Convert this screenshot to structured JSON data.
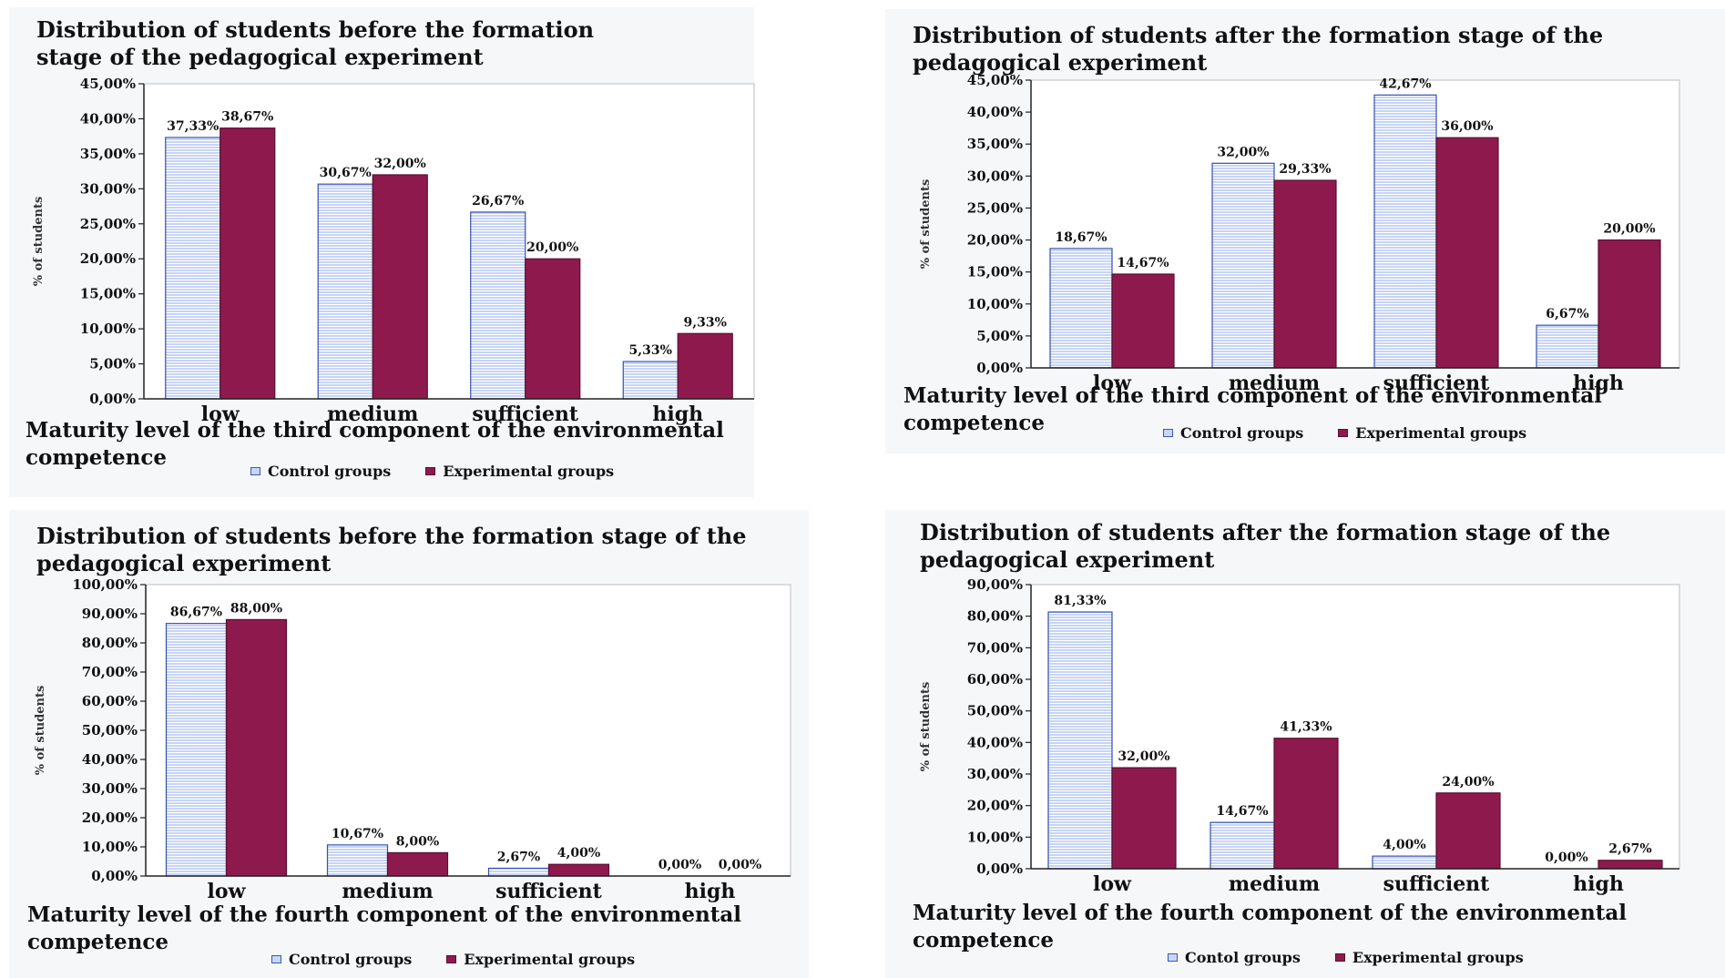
{
  "colors": {
    "control": "#c7d4f3",
    "control_stroke": "#3650b0",
    "control_stripe": "#ffffff",
    "experimental": "#8e1a4d",
    "experimental_stroke": "#5a0f30"
  },
  "charts": [
    {
      "title": "Distribution of students before the formation stage of the pedagogical experiment",
      "xtitle": "Maturity level of the third component of the environmental competence",
      "ylabel": "% of students",
      "legend": [
        "Control groups",
        "Experimental groups"
      ],
      "ticks": [
        "0,00%",
        "5,00%",
        "10,00%",
        "15,00%",
        "20,00%",
        "25,00%",
        "30,00%",
        "35,00%",
        "40,00%",
        "45,00%"
      ]
    },
    {
      "title": "Distribution of students after the formation stage of the pedagogical experiment",
      "xtitle": "Maturity level of the third component of the environmental competence",
      "ylabel": "% of students",
      "legend": [
        "Control groups",
        "Experimental groups"
      ],
      "ticks": [
        "0,00%",
        "5,00%",
        "10,00%",
        "15,00%",
        "20,00%",
        "25,00%",
        "30,00%",
        "35,00%",
        "40,00%",
        "45,00%"
      ]
    },
    {
      "title": "Distribution of students before the formation stage of the pedagogical experiment",
      "xtitle": "Maturity level of the fourth component of the environmental competence",
      "ylabel": "% of students",
      "legend": [
        "Control groups",
        "Experimental groups"
      ],
      "ticks": [
        "0,00%",
        "10,00%",
        "20,00%",
        "30,00%",
        "40,00%",
        "50,00%",
        "60,00%",
        "70,00%",
        "80,00%",
        "90,00%",
        "100,00%"
      ]
    },
    {
      "title": "Distribution of students after the formation stage of the pedagogical experiment",
      "xtitle": "Maturity level of the fourth component of the environmental competence",
      "ylabel": "% of students",
      "legend": [
        "Contol groups",
        "Experimental groups"
      ],
      "ticks": [
        "0,00%",
        "10,00%",
        "20,00%",
        "30,00%",
        "40,00%",
        "50,00%",
        "60,00%",
        "70,00%",
        "80,00%",
        "90,00%"
      ]
    }
  ],
  "chart_data": [
    {
      "type": "bar",
      "title": "Distribution of students before the formation stage of the pedagogical experiment",
      "xlabel": "Maturity level of the third component of the environmental competence",
      "ylabel": "% of students",
      "categories": [
        "low",
        "medium",
        "sufficient",
        "high"
      ],
      "series": [
        {
          "name": "Control groups",
          "values": [
            37.33,
            30.67,
            26.67,
            5.33
          ],
          "labels": [
            "37,33%",
            "30,67%",
            "26,67%",
            "5,33%"
          ]
        },
        {
          "name": "Experimental groups",
          "values": [
            38.67,
            32.0,
            20.0,
            9.33
          ],
          "labels": [
            "38,67%",
            "32,00%",
            "20,00%",
            "9,33%"
          ]
        }
      ],
      "ylim": [
        0,
        45
      ],
      "legend": "bottom",
      "grid": false
    },
    {
      "type": "bar",
      "title": "Distribution of students after the formation stage of the pedagogical experiment",
      "xlabel": "Maturity level of the third component of the environmental competence",
      "ylabel": "% of students",
      "categories": [
        "low",
        "medium",
        "sufficient",
        "high"
      ],
      "series": [
        {
          "name": "Control groups",
          "values": [
            18.67,
            32.0,
            42.67,
            6.67
          ],
          "labels": [
            "18,67%",
            "32,00%",
            "42,67%",
            "6,67%"
          ]
        },
        {
          "name": "Experimental groups",
          "values": [
            14.67,
            29.33,
            36.0,
            20.0
          ],
          "labels": [
            "14,67%",
            "29,33%",
            "36,00%",
            "20,00%"
          ]
        }
      ],
      "ylim": [
        0,
        45
      ],
      "legend": "bottom",
      "grid": false
    },
    {
      "type": "bar",
      "title": "Distribution of students before the formation stage of the pedagogical experiment",
      "xlabel": "Maturity level of the fourth component of the environmental competence",
      "ylabel": "% of students",
      "categories": [
        "low",
        "medium",
        "sufficient",
        "high"
      ],
      "series": [
        {
          "name": "Control groups",
          "values": [
            86.67,
            10.67,
            2.67,
            0.0
          ],
          "labels": [
            "86,67%",
            "10,67%",
            "2,67%",
            "0,00%"
          ]
        },
        {
          "name": "Experimental groups",
          "values": [
            88.0,
            8.0,
            4.0,
            0.0
          ],
          "labels": [
            "88,00%",
            "8,00%",
            "4,00%",
            "0,00%"
          ]
        }
      ],
      "ylim": [
        0,
        100
      ],
      "legend": "bottom",
      "grid": false
    },
    {
      "type": "bar",
      "title": "Distribution of students after the formation stage of the pedagogical experiment",
      "xlabel": "Maturity level of the fourth component of the environmental competence",
      "ylabel": "% of students",
      "categories": [
        "low",
        "medium",
        "sufficient",
        "high"
      ],
      "series": [
        {
          "name": "Contol groups",
          "values": [
            81.33,
            14.67,
            4.0,
            0.0
          ],
          "labels": [
            "81,33%",
            "14,67%",
            "4,00%",
            "0,00%"
          ]
        },
        {
          "name": "Experimental groups",
          "values": [
            32.0,
            41.33,
            24.0,
            2.67
          ],
          "labels": [
            "32,00%",
            "41,33%",
            "24,00%",
            "2,67%"
          ]
        }
      ],
      "ylim": [
        0,
        90
      ],
      "legend": "bottom",
      "grid": false
    }
  ]
}
